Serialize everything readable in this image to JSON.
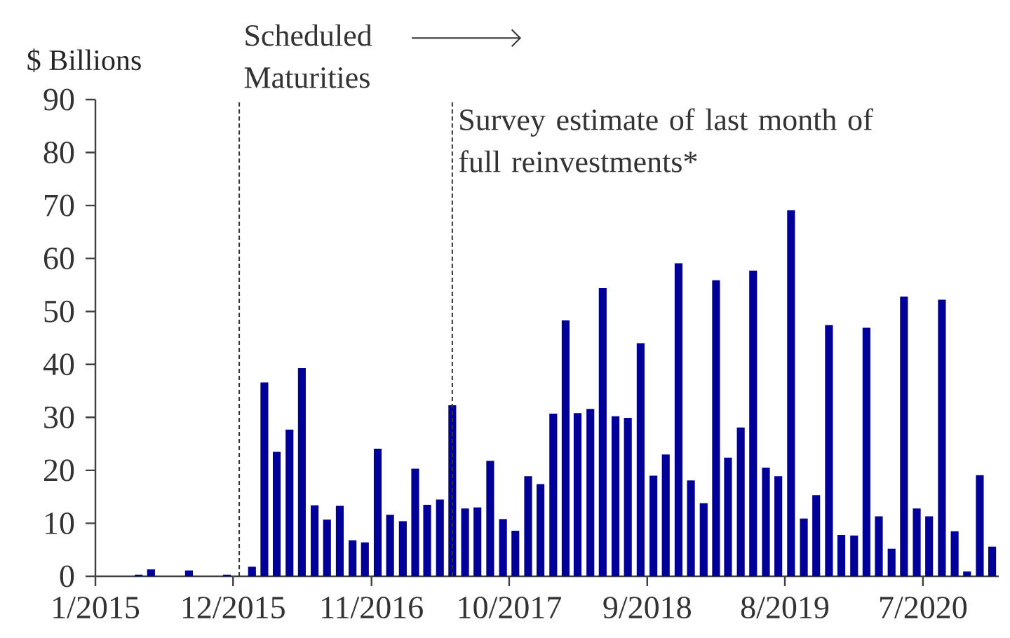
{
  "chart_data": {
    "type": "bar",
    "ylabel": "$ Billions",
    "color": "#000099",
    "x": [
      "2015-01-16",
      "2015-02-15",
      "2015-03-16",
      "2015-04-16",
      "2015-05-16",
      "2015-06-16",
      "2015-07-16",
      "2015-08-16",
      "2015-09-16",
      "2015-10-16",
      "2015-11-16",
      "2015-12-16",
      "2016-01-16",
      "2016-02-15",
      "2016-03-16",
      "2016-04-16",
      "2016-05-16",
      "2016-06-16",
      "2016-07-16",
      "2016-08-16",
      "2016-09-16",
      "2016-10-16",
      "2016-11-16",
      "2016-12-16",
      "2017-01-16",
      "2017-02-15",
      "2017-03-16",
      "2017-04-16",
      "2017-05-16",
      "2017-06-16",
      "2017-07-16",
      "2017-08-16",
      "2017-09-16",
      "2017-10-16",
      "2017-11-16",
      "2017-12-16",
      "2018-01-16",
      "2018-02-15",
      "2018-03-16",
      "2018-04-16",
      "2018-05-16",
      "2018-06-16",
      "2018-07-16",
      "2018-08-16",
      "2018-09-16",
      "2018-10-16",
      "2018-11-16",
      "2018-12-16",
      "2019-01-16",
      "2019-02-15",
      "2019-03-16",
      "2019-04-16",
      "2019-05-16",
      "2019-06-16",
      "2019-07-16",
      "2019-08-16",
      "2019-09-16",
      "2019-10-16",
      "2019-11-16",
      "2019-12-16",
      "2020-01-16",
      "2020-02-15",
      "2020-03-16",
      "2020-04-16",
      "2020-05-16",
      "2020-06-16",
      "2020-07-16",
      "2020-08-16",
      "2020-09-16",
      "2020-10-16",
      "2020-11-16",
      "2020-12-16"
    ],
    "values": [
      0,
      0,
      0,
      0.3,
      1.3,
      0,
      0,
      1.1,
      0,
      0,
      0.3,
      0,
      1.8,
      36.6,
      23.5,
      27.7,
      39.3,
      13.4,
      10.7,
      13.3,
      6.8,
      6.4,
      24.1,
      11.6,
      10.4,
      20.3,
      13.5,
      14.5,
      32.3,
      12.8,
      13.0,
      21.8,
      10.8,
      8.6,
      18.9,
      17.4,
      30.7,
      48.3,
      30.8,
      31.6,
      54.4,
      30.2,
      29.9,
      44.0,
      19.0,
      23.0,
      59.1,
      18.1,
      13.8,
      55.9,
      22.4,
      28.1,
      57.7,
      20.5,
      18.9,
      69.1,
      10.9,
      15.3,
      47.4,
      7.8,
      7.7,
      46.9,
      11.3,
      5.2,
      52.8,
      12.8,
      11.3,
      52.2,
      8.5,
      0.9,
      19.1,
      5.6
    ],
    "xlim": [
      "2015-01",
      "2021-01"
    ],
    "xticks": [
      {
        "value": "2015-01",
        "label": "1/2015"
      },
      {
        "value": "2015-12",
        "label": "12/2015"
      },
      {
        "value": "2016-11",
        "label": "11/2016"
      },
      {
        "value": "2017-10",
        "label": "10/2017"
      },
      {
        "value": "2018-09",
        "label": "9/2018"
      },
      {
        "value": "2019-08",
        "label": "8/2019"
      },
      {
        "value": "2020-07",
        "label": "7/2020"
      }
    ],
    "annotations": [
      "Scheduled Maturities"
    ],
    "ylim": [
      0,
      90
    ],
    "yticks": [
      0,
      10,
      20,
      30,
      40,
      50,
      60,
      70,
      80,
      90
    ],
    "ref_lines": [
      {
        "axis": "x",
        "value": "2015-12-16",
        "line_style": "dashed",
        "color": "#333333"
      },
      {
        "axis": "x",
        "value": "2017-05-16",
        "label": "Survey estimate of last month of full reinvestments*",
        "line_style": "dashed",
        "color": "#333333"
      }
    ]
  }
}
